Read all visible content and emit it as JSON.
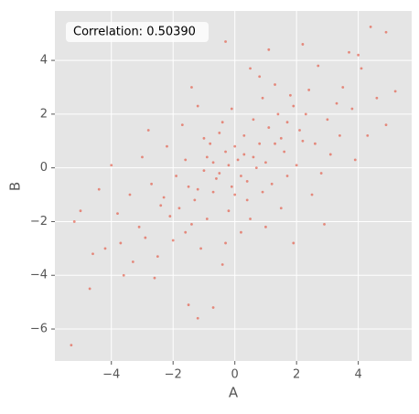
{
  "chart_data": {
    "type": "scatter",
    "annotation": "Correlation: 0.50390",
    "xlabel": "A",
    "ylabel": "B",
    "color": "#E24A33",
    "grid": true,
    "xlim": [
      -5.83,
      5.73
    ],
    "ylim": [
      -7.19,
      5.84
    ],
    "xticks": [
      {
        "value": -4,
        "label": "−4"
      },
      {
        "value": -2,
        "label": "−2"
      },
      0,
      2,
      4
    ],
    "yticks": [
      {
        "value": -6,
        "label": "−6"
      },
      {
        "value": -4,
        "label": "−4"
      },
      {
        "value": -2,
        "label": "−2"
      },
      0,
      2,
      4
    ],
    "x": [
      0.1,
      -0.5,
      0.8,
      -1.2,
      1.5,
      -0.3,
      0.4,
      -1.8,
      2.1,
      0.0,
      1.0,
      -0.9,
      0.6,
      -1.4,
      1.9,
      -0.2,
      0.3,
      -2.3,
      2.6,
      -0.7,
      1.2,
      -1.0,
      0.9,
      -2.0,
      2.4,
      0.5,
      -0.4,
      -2.7,
      3.0,
      -1.6,
      1.7,
      -0.1,
      0.2,
      -3.1,
      3.3,
      -1.1,
      1.3,
      -2.5,
      2.8,
      -3.4,
      0.7,
      -0.6,
      1.1,
      -1.3,
      1.6,
      -0.8,
      0.0,
      -1.9,
      2.0,
      0.4,
      -0.2,
      0.6,
      -1.5,
      1.4,
      -0.9,
      2.2,
      -2.1,
      0.9,
      -0.5,
      1.8,
      -2.9,
      3.5,
      -3.7,
      3.8,
      -2.2,
      2.5,
      -1.7,
      1.5,
      -0.3,
      0.8,
      -3.0,
      3.1,
      -1.2,
      1.0,
      -2.6,
      2.7,
      -3.3,
      3.4,
      -0.4,
      0.5,
      -1.0,
      1.3,
      -0.7,
      0.2,
      -1.6,
      2.3,
      -2.4,
      1.7,
      -0.1,
      0.3,
      4.3,
      4.9,
      4.1,
      -4.0,
      -4.4,
      -4.6,
      -3.6,
      4.4,
      4.9,
      5.2,
      -5.3,
      -4.7,
      -5.0,
      -5.2,
      -1.2,
      -1.5,
      -0.7,
      -0.3,
      1.1,
      2.2,
      3.7,
      4.0,
      -4.2,
      3.9,
      -3.8,
      4.6,
      2.9,
      -2.8,
      1.9,
      -1.4
    ],
    "values": [
      0.3,
      -0.2,
      0.9,
      -0.8,
      1.1,
      0.6,
      -0.5,
      -1.5,
      1.4,
      -1.0,
      0.2,
      0.4,
      1.8,
      -2.1,
      2.3,
      -1.6,
      1.2,
      -1.1,
      0.9,
      -0.9,
      -0.6,
      1.1,
      2.6,
      -2.7,
      2.9,
      -1.9,
      1.7,
      -0.6,
      1.8,
      0.3,
      -0.3,
      2.2,
      -2.4,
      -2.2,
      2.4,
      -3.0,
      3.1,
      -3.3,
      -0.2,
      -1.0,
      0.0,
      -0.4,
      1.5,
      -1.2,
      0.6,
      0.9,
      0.8,
      -0.3,
      0.1,
      -1.2,
      0.1,
      0.4,
      -0.7,
      2.0,
      -1.9,
      1.0,
      -1.8,
      -0.9,
      1.3,
      2.7,
      -2.6,
      3.0,
      -2.8,
      2.2,
      0.8,
      -1.0,
      1.6,
      -1.5,
      -2.8,
      3.4,
      0.4,
      0.5,
      2.3,
      -2.2,
      -4.1,
      3.8,
      -3.5,
      1.2,
      -3.6,
      3.7,
      -0.1,
      0.9,
      0.2,
      -0.3,
      -2.4,
      2.0,
      -1.4,
      1.7,
      -0.7,
      0.5,
      1.2,
      1.6,
      3.7,
      0.1,
      -0.8,
      -3.2,
      -4.0,
      5.25,
      5.05,
      2.85,
      -6.6,
      -4.5,
      -1.6,
      -2.0,
      -5.6,
      -5.1,
      -5.2,
      4.7,
      4.4,
      4.6,
      4.3,
      4.2,
      -3.0,
      0.3,
      -1.7,
      2.6,
      -2.1,
      1.4,
      -2.8,
      3.0
    ]
  }
}
